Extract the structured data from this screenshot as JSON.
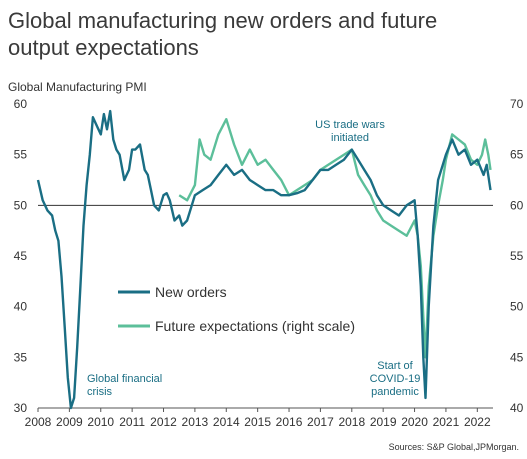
{
  "chart_data": {
    "type": "line",
    "title_lines": [
      "Global manufacturing new orders and future",
      "output expectations"
    ],
    "ylabel": "Global Manufacturing PMI",
    "y_left": {
      "min": 30,
      "max": 60,
      "ticks": [
        60,
        55,
        50,
        45,
        40,
        35,
        30
      ]
    },
    "y_right": {
      "min": 40,
      "max": 70,
      "ticks": [
        70,
        65,
        60,
        55,
        50,
        45,
        40
      ]
    },
    "x_range": [
      2008,
      2022.5
    ],
    "x_ticks": [
      "2008",
      "2009",
      "2010",
      "2011",
      "2012",
      "2013",
      "2014",
      "2015",
      "2016",
      "2017",
      "2018",
      "2019",
      "2020",
      "2021",
      "2022"
    ],
    "reference_line": 50,
    "legend": "center-left",
    "series": [
      {
        "name": "New orders",
        "color": "#1a6e84",
        "axis": "left",
        "x": [
          2008.0,
          2008.15,
          2008.3,
          2008.45,
          2008.55,
          2008.65,
          2008.75,
          2008.85,
          2008.95,
          2009.05,
          2009.15,
          2009.25,
          2009.35,
          2009.45,
          2009.55,
          2009.65,
          2009.75,
          2009.85,
          2010.0,
          2010.1,
          2010.2,
          2010.3,
          2010.4,
          2010.5,
          2010.6,
          2010.75,
          2010.9,
          2011.0,
          2011.1,
          2011.25,
          2011.4,
          2011.5,
          2011.6,
          2011.7,
          2011.85,
          2012.0,
          2012.1,
          2012.2,
          2012.35,
          2012.5,
          2012.6,
          2012.75,
          2012.9,
          2013.0,
          2013.25,
          2013.5,
          2013.75,
          2014.0,
          2014.25,
          2014.5,
          2014.75,
          2015.0,
          2015.25,
          2015.5,
          2015.75,
          2016.0,
          2016.25,
          2016.5,
          2016.75,
          2017.0,
          2017.25,
          2017.5,
          2017.75,
          2018.0,
          2018.2,
          2018.4,
          2018.6,
          2018.8,
          2019.0,
          2019.25,
          2019.5,
          2019.75,
          2020.0,
          2020.1,
          2020.2,
          2020.28,
          2020.35,
          2020.45,
          2020.6,
          2020.75,
          2020.9,
          2021.0,
          2021.2,
          2021.4,
          2021.6,
          2021.8,
          2022.0,
          2022.2,
          2022.3,
          2022.42
        ],
        "values": [
          52.5,
          50.5,
          49.5,
          49.0,
          47.5,
          46.5,
          43.0,
          38.0,
          33.0,
          30.0,
          31.0,
          36.0,
          42.0,
          48.0,
          52.0,
          55.0,
          58.7,
          58.0,
          57.0,
          59.0,
          57.5,
          59.3,
          56.5,
          55.5,
          55.0,
          52.5,
          53.5,
          55.5,
          55.5,
          56.0,
          53.5,
          53.0,
          51.5,
          50.0,
          49.5,
          51.0,
          51.2,
          50.5,
          48.5,
          49.0,
          48.0,
          48.5,
          50.0,
          51.0,
          51.5,
          52.0,
          53.0,
          54.0,
          53.0,
          53.5,
          52.5,
          52.0,
          51.5,
          51.5,
          51.0,
          51.0,
          51.2,
          51.5,
          52.5,
          53.5,
          53.5,
          54.0,
          54.5,
          55.5,
          54.5,
          53.5,
          52.5,
          51.0,
          50.0,
          49.5,
          49.0,
          50.0,
          50.5,
          47.0,
          42.0,
          35.0,
          31.0,
          40.0,
          48.0,
          52.5,
          54.0,
          55.0,
          56.5,
          55.0,
          55.5,
          54.0,
          54.5,
          53.0,
          54.0,
          51.5
        ]
      },
      {
        "name": "Future expectations (right scale)",
        "color": "#5cbf9a",
        "axis": "right",
        "x": [
          2012.5,
          2012.75,
          2013.0,
          2013.15,
          2013.3,
          2013.5,
          2013.75,
          2014.0,
          2014.25,
          2014.5,
          2014.75,
          2015.0,
          2015.25,
          2015.5,
          2015.75,
          2016.0,
          2016.25,
          2016.5,
          2016.75,
          2017.0,
          2017.25,
          2017.5,
          2017.75,
          2018.0,
          2018.2,
          2018.4,
          2018.6,
          2018.8,
          2019.0,
          2019.25,
          2019.5,
          2019.75,
          2020.0,
          2020.1,
          2020.2,
          2020.28,
          2020.35,
          2020.45,
          2020.6,
          2020.75,
          2020.9,
          2021.0,
          2021.2,
          2021.4,
          2021.6,
          2021.8,
          2022.0,
          2022.15,
          2022.25,
          2022.35,
          2022.42
        ],
        "values": [
          61.0,
          60.5,
          62.0,
          66.5,
          65.0,
          64.5,
          67.0,
          68.5,
          66.0,
          64.0,
          65.5,
          64.0,
          64.5,
          63.5,
          62.5,
          61.0,
          61.5,
          62.0,
          62.5,
          63.5,
          64.0,
          64.5,
          65.0,
          65.5,
          63.0,
          62.0,
          61.0,
          59.5,
          58.5,
          58.0,
          57.5,
          57.0,
          58.5,
          57.0,
          54.0,
          49.0,
          45.0,
          52.0,
          57.0,
          60.0,
          62.5,
          64.5,
          67.0,
          66.5,
          66.0,
          64.5,
          64.0,
          65.0,
          66.5,
          65.0,
          63.5
        ]
      }
    ],
    "annotations": [
      {
        "text_lines": [
          "US trade wars",
          "initiated"
        ],
        "color": "#1a6e84"
      },
      {
        "text_lines": [
          "Global financial",
          "crisis"
        ],
        "color": "#1a6e84"
      },
      {
        "text_lines": [
          "Start of",
          "COVID-19",
          "pandemic"
        ],
        "color": "#1a6e84"
      }
    ],
    "source": "Sources: S&P Global,JPMorgan."
  }
}
